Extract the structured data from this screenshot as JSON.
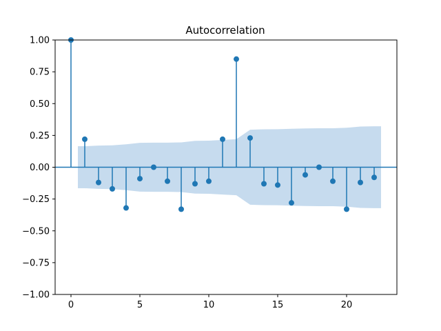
{
  "chart_data": {
    "type": "stem",
    "title": "Autocorrelation",
    "xlabel": "",
    "ylabel": "",
    "xlim": [
      -1.15,
      23.65
    ],
    "ylim": [
      -1.0,
      1.0
    ],
    "xticks": [
      0,
      5,
      10,
      15,
      20
    ],
    "xtick_labels": [
      "0",
      "5",
      "10",
      "15",
      "20"
    ],
    "yticks": [
      -1.0,
      -0.75,
      -0.5,
      -0.25,
      0.0,
      0.25,
      0.5,
      0.75,
      1.0
    ],
    "ytick_labels": [
      "−1.00",
      "−0.75",
      "−0.50",
      "−0.25",
      "0.00",
      "0.25",
      "0.50",
      "0.75",
      "1.00"
    ],
    "grid": false,
    "series": [
      {
        "lags": [
          0,
          1,
          2,
          3,
          4,
          5,
          6,
          7,
          8,
          9,
          10,
          11,
          12,
          13,
          14,
          15,
          16,
          17,
          18,
          19,
          20,
          21,
          22
        ],
        "values": [
          1.0,
          0.22,
          -0.12,
          -0.17,
          -0.32,
          -0.09,
          0.0,
          -0.11,
          -0.33,
          -0.13,
          -0.11,
          0.22,
          0.85,
          0.23,
          -0.13,
          -0.14,
          -0.28,
          -0.06,
          0.0,
          -0.11,
          -0.33,
          -0.12,
          -0.08
        ]
      }
    ],
    "confidence_band": {
      "x": [
        0.5,
        1,
        2,
        3,
        4,
        5,
        6,
        7,
        8,
        9,
        10,
        11,
        12,
        13,
        14,
        15,
        16,
        17,
        18,
        19,
        20,
        21,
        22,
        22.5
      ],
      "upper": [
        0.165,
        0.165,
        0.17,
        0.172,
        0.18,
        0.192,
        0.193,
        0.193,
        0.195,
        0.207,
        0.209,
        0.215,
        0.22,
        0.295,
        0.298,
        0.299,
        0.302,
        0.305,
        0.306,
        0.306,
        0.31,
        0.32,
        0.322,
        0.322
      ]
    },
    "colors": {
      "stem": "#1f77b4",
      "band": "#c6dbee",
      "axes": "#000000"
    }
  }
}
